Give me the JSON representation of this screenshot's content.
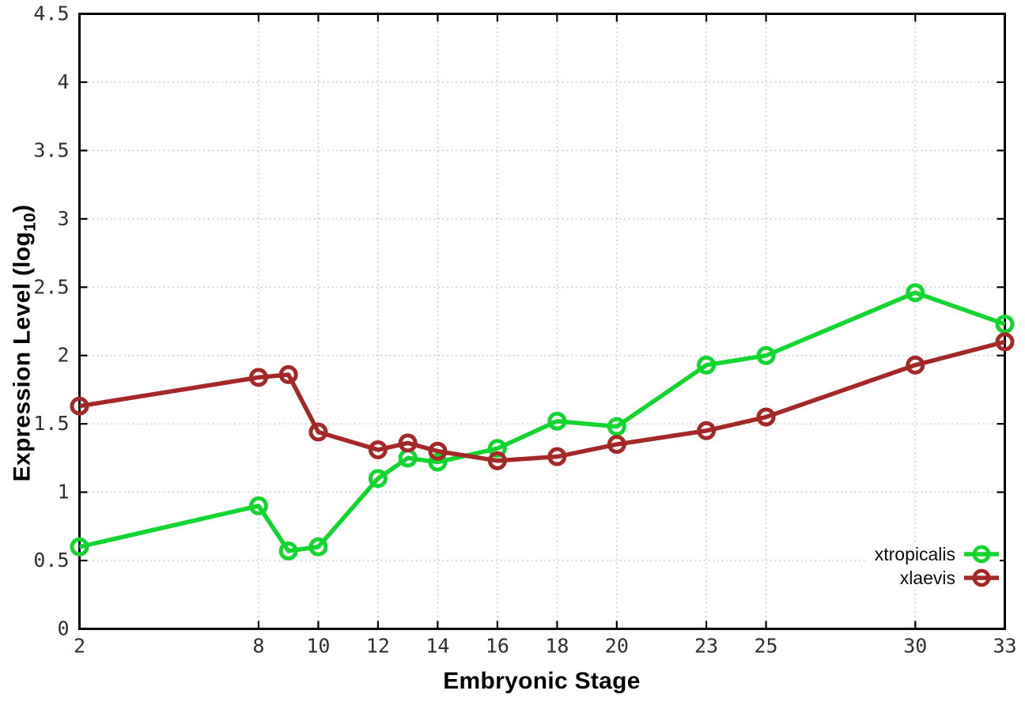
{
  "figure": {
    "background": "#ffffff"
  },
  "colors": {
    "grid": "#c8c8c8",
    "axis": "#000000",
    "tick_label": "#303030"
  },
  "chart_data": {
    "type": "line",
    "title": "",
    "xlabel": "Embryonic Stage",
    "ylabel": "Expression Level (log10)",
    "ylabel_parts": {
      "prefix": "Expression Level (log",
      "sub": "10",
      "suffix": ")"
    },
    "xlim": [
      2,
      33
    ],
    "ylim": [
      0,
      4.5
    ],
    "x_tick_values": [
      2,
      8,
      10,
      12,
      14,
      16,
      18,
      20,
      23,
      25,
      30,
      33
    ],
    "x_tick_labels": [
      "2",
      "8",
      "10",
      "12",
      "14",
      "16",
      "18",
      "20",
      "23",
      "25",
      "30",
      "33"
    ],
    "y_tick_values": [
      0,
      0.5,
      1,
      1.5,
      2,
      2.5,
      3,
      3.5,
      4,
      4.5
    ],
    "y_tick_labels": [
      "0",
      "0.5",
      "1",
      "1.5",
      "2",
      "2.5",
      "3",
      "3.5",
      "4",
      "4.5"
    ],
    "grid": "dotted",
    "legend_position": "bottom-right",
    "x": [
      2,
      8,
      9,
      10,
      12,
      13,
      14,
      16,
      18,
      20,
      23,
      25,
      30,
      33
    ],
    "series": [
      {
        "name": "xtropicalis",
        "color": "#12d62f",
        "values": [
          0.6,
          0.9,
          0.57,
          0.6,
          1.1,
          1.25,
          1.22,
          1.32,
          1.52,
          1.48,
          1.93,
          2.0,
          2.46,
          2.23
        ]
      },
      {
        "name": "xlaevis",
        "color": "#a42828",
        "values": [
          1.63,
          1.84,
          1.86,
          1.44,
          1.31,
          1.36,
          1.3,
          1.23,
          1.26,
          1.35,
          1.45,
          1.55,
          1.93,
          2.1
        ]
      }
    ]
  }
}
